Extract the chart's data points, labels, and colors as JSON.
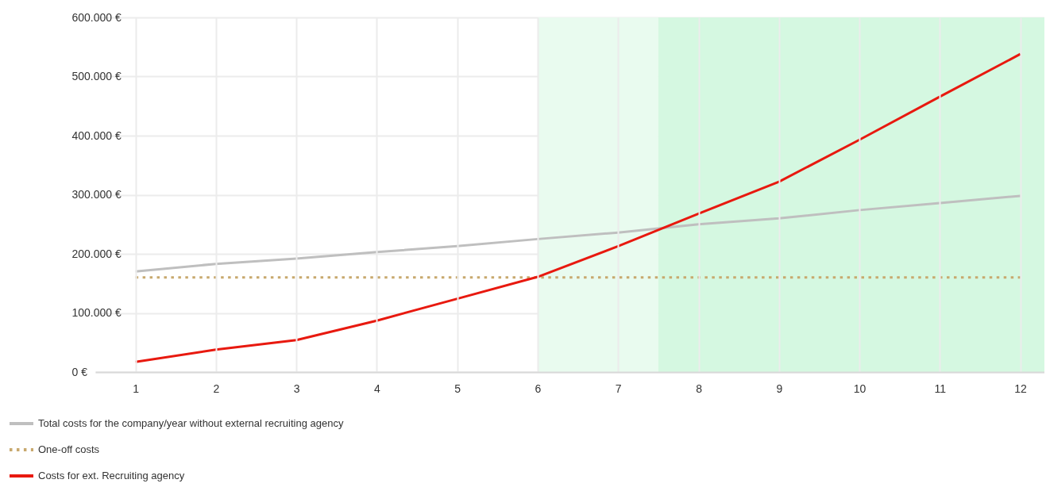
{
  "chart_data": {
    "type": "line",
    "x": [
      1,
      2,
      3,
      4,
      5,
      6,
      7,
      8,
      9,
      10,
      11,
      12
    ],
    "xlim": [
      0.5,
      12.3
    ],
    "xticks": [
      1,
      2,
      3,
      4,
      5,
      6,
      7,
      8,
      9,
      10,
      11,
      12
    ],
    "ylim": [
      0,
      600000
    ],
    "yticks": [
      {
        "value": 0,
        "label": "0 €"
      },
      {
        "value": 100000,
        "label": "100.000 €"
      },
      {
        "value": 200000,
        "label": "200.000 €"
      },
      {
        "value": 300000,
        "label": "300.000 €"
      },
      {
        "value": 400000,
        "label": "400.000 €"
      },
      {
        "value": 500000,
        "label": "500.000 €"
      },
      {
        "value": 600000,
        "label": "600.000 €"
      }
    ],
    "grid": true,
    "legend": "bottom left",
    "bands": [
      {
        "axis": "x",
        "from": 6,
        "to": 7.5,
        "color": "#e9fbef"
      },
      {
        "axis": "x",
        "from": 7.5,
        "to": 12.3,
        "color": "#d5f8e1"
      }
    ],
    "series": [
      {
        "name": "Total costs for the company/year without external recruiting agency",
        "color": "#bfbfbf",
        "line_style": "solid",
        "values": [
          170000,
          183000,
          192000,
          203000,
          213000,
          225000,
          236000,
          250000,
          260000,
          274000,
          286000,
          298000
        ]
      },
      {
        "name": "One-off costs",
        "color": "#c8a96e",
        "line_style": "dotted",
        "values": [
          160000,
          160000,
          160000,
          160000,
          160000,
          160000,
          160000,
          160000,
          160000,
          160000,
          160000,
          160000
        ]
      },
      {
        "name": "Costs for ext. Recruiting agency",
        "color": "#e8190f",
        "line_style": "solid",
        "values": [
          17000,
          38000,
          54000,
          87000,
          124000,
          161000,
          213000,
          268000,
          322000,
          393000,
          466000,
          538000
        ]
      }
    ]
  }
}
